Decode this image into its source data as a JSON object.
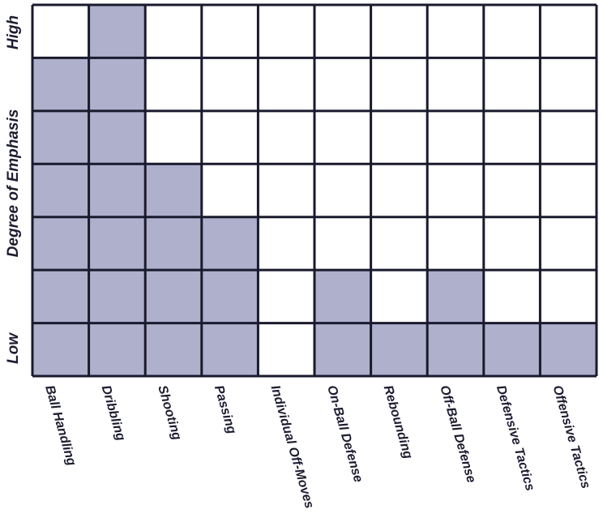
{
  "chart_data": {
    "type": "heatmap",
    "title": "",
    "xlabel": "",
    "ylabel": "Degree of Emphasis",
    "y_end_labels": {
      "high": "High",
      "low": "Low"
    },
    "levels": 7,
    "categories": [
      "Ball Handling",
      "Dribbling",
      "Shooting",
      "Passing",
      "Individual Off-Moves",
      "On-Ball Defense",
      "Rebounding",
      "Off-Ball Defense",
      "Defensive Tactics",
      "Offensive Tactics"
    ],
    "values": [
      6,
      7,
      4,
      3,
      0,
      2,
      1,
      2,
      1,
      1
    ],
    "grid": true,
    "colors": {
      "filled": "#aeb0cc",
      "empty": "#ffffff",
      "grid_line": "#1a1a2e",
      "text": "#1c1c30"
    }
  }
}
